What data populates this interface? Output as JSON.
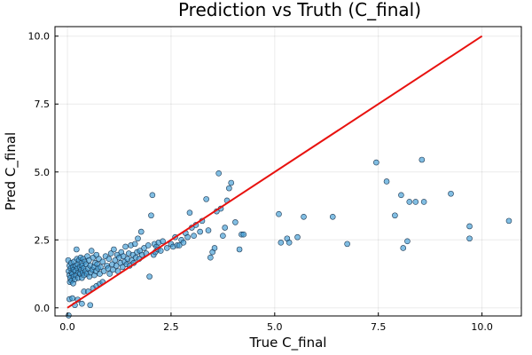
{
  "chart_data": {
    "type": "scatter",
    "title": "Prediction vs Truth (C_final)",
    "xlabel": "True C_final",
    "ylabel": "Pred C_final",
    "xlim": [
      -0.3,
      10.95
    ],
    "ylim": [
      -0.3,
      10.35
    ],
    "xticks": [
      0,
      2.5,
      5,
      7.5,
      10
    ],
    "xtick_labels": [
      "0.0",
      "2.5",
      "5.0",
      "7.5",
      "10.0"
    ],
    "yticks": [
      0,
      2.5,
      5,
      7.5,
      10
    ],
    "ytick_labels": [
      "0.0",
      "2.5",
      "5.0",
      "7.5",
      "10.0"
    ],
    "grid": true,
    "legend": false,
    "colors": {
      "points": "#3d9bd4",
      "reference_line": "#e8120f"
    },
    "reference_line": {
      "x": [
        0,
        10
      ],
      "y": [
        0,
        10
      ]
    },
    "points": [
      [
        0.03,
        -0.28
      ],
      [
        0.05,
        0.32
      ],
      [
        0.12,
        0.35
      ],
      [
        0.18,
        0.1
      ],
      [
        0.25,
        0.3
      ],
      [
        0.35,
        0.15
      ],
      [
        0.4,
        0.6
      ],
      [
        0.5,
        0.6
      ],
      [
        0.55,
        0.1
      ],
      [
        0.62,
        0.72
      ],
      [
        0.7,
        0.8
      ],
      [
        0.78,
        0.88
      ],
      [
        0.85,
        0.95
      ],
      [
        0.02,
        1.75
      ],
      [
        0.03,
        1.35
      ],
      [
        0.05,
        1.2
      ],
      [
        0.05,
        1.55
      ],
      [
        0.06,
        0.95
      ],
      [
        0.07,
        1.1
      ],
      [
        0.08,
        1.45
      ],
      [
        0.09,
        1.65
      ],
      [
        0.1,
        1.3
      ],
      [
        0.1,
        1.0
      ],
      [
        0.12,
        1.25
      ],
      [
        0.13,
        1.5
      ],
      [
        0.14,
        0.9
      ],
      [
        0.15,
        1.15
      ],
      [
        0.15,
        1.4
      ],
      [
        0.16,
        1.7
      ],
      [
        0.18,
        1.05
      ],
      [
        0.19,
        1.35
      ],
      [
        0.2,
        1.55
      ],
      [
        0.21,
        1.2
      ],
      [
        0.22,
        2.15
      ],
      [
        0.23,
        1.8
      ],
      [
        0.24,
        1.45
      ],
      [
        0.25,
        1.6
      ],
      [
        0.26,
        1.1
      ],
      [
        0.27,
        1.3
      ],
      [
        0.28,
        1.75
      ],
      [
        0.3,
        1.5
      ],
      [
        0.31,
        1.25
      ],
      [
        0.32,
        1.85
      ],
      [
        0.33,
        1.4
      ],
      [
        0.34,
        1.65
      ],
      [
        0.35,
        1.1
      ],
      [
        0.36,
        1.55
      ],
      [
        0.37,
        1.3
      ],
      [
        0.38,
        1.8
      ],
      [
        0.39,
        1.45
      ],
      [
        0.4,
        1.2
      ],
      [
        0.42,
        1.7
      ],
      [
        0.44,
        1.35
      ],
      [
        0.45,
        1.6
      ],
      [
        0.47,
        1.25
      ],
      [
        0.48,
        1.9
      ],
      [
        0.5,
        1.45
      ],
      [
        0.52,
        1.75
      ],
      [
        0.53,
        1.15
      ],
      [
        0.55,
        1.55
      ],
      [
        0.56,
        1.3
      ],
      [
        0.58,
        2.1
      ],
      [
        0.6,
        1.4
      ],
      [
        0.62,
        1.85
      ],
      [
        0.64,
        1.5
      ],
      [
        0.65,
        1.2
      ],
      [
        0.67,
        1.65
      ],
      [
        0.69,
        1.35
      ],
      [
        0.7,
        1.95
      ],
      [
        0.72,
        1.6
      ],
      [
        0.74,
        1.45
      ],
      [
        0.76,
        1.8
      ],
      [
        0.78,
        1.25
      ],
      [
        0.8,
        1.5
      ],
      [
        0.85,
        1.7
      ],
      [
        0.88,
        1.35
      ],
      [
        0.92,
        1.9
      ],
      [
        0.95,
        1.55
      ],
      [
        0.98,
        1.45
      ],
      [
        1.0,
        1.8
      ],
      [
        1.02,
        1.25
      ],
      [
        1.05,
        2.0
      ],
      [
        1.08,
        1.6
      ],
      [
        1.1,
        1.4
      ],
      [
        1.12,
        2.15
      ],
      [
        1.15,
        1.75
      ],
      [
        1.18,
        1.55
      ],
      [
        1.2,
        1.95
      ],
      [
        1.22,
        1.35
      ],
      [
        1.25,
        1.85
      ],
      [
        1.28,
        1.65
      ],
      [
        1.3,
        2.05
      ],
      [
        1.33,
        1.5
      ],
      [
        1.35,
        1.9
      ],
      [
        1.38,
        1.7
      ],
      [
        1.4,
        2.25
      ],
      [
        1.43,
        1.6
      ],
      [
        1.45,
        1.8
      ],
      [
        1.48,
        2.0
      ],
      [
        1.5,
        1.55
      ],
      [
        1.53,
        2.3
      ],
      [
        1.55,
        1.75
      ],
      [
        1.58,
        1.95
      ],
      [
        1.6,
        1.65
      ],
      [
        1.63,
        2.35
      ],
      [
        1.65,
        1.85
      ],
      [
        1.68,
        2.05
      ],
      [
        1.7,
        2.55
      ],
      [
        1.73,
        1.8
      ],
      [
        1.75,
        2.1
      ],
      [
        1.78,
        2.8
      ],
      [
        1.8,
        1.95
      ],
      [
        1.85,
        2.2
      ],
      [
        1.9,
        2.0
      ],
      [
        1.95,
        2.3
      ],
      [
        1.98,
        1.15
      ],
      [
        2.02,
        3.4
      ],
      [
        2.05,
        4.15
      ],
      [
        2.08,
        1.95
      ],
      [
        2.1,
        2.35
      ],
      [
        2.12,
        2.05
      ],
      [
        2.15,
        2.25
      ],
      [
        2.18,
        2.15
      ],
      [
        2.2,
        2.4
      ],
      [
        2.25,
        2.1
      ],
      [
        2.3,
        2.45
      ],
      [
        2.4,
        2.2
      ],
      [
        2.5,
        2.35
      ],
      [
        2.55,
        2.25
      ],
      [
        2.6,
        2.6
      ],
      [
        2.65,
        2.3
      ],
      [
        2.7,
        2.3
      ],
      [
        2.75,
        2.5
      ],
      [
        2.8,
        2.4
      ],
      [
        2.85,
        2.75
      ],
      [
        2.9,
        2.6
      ],
      [
        2.95,
        3.5
      ],
      [
        3.0,
        2.95
      ],
      [
        3.05,
        2.65
      ],
      [
        3.1,
        3.05
      ],
      [
        3.2,
        2.8
      ],
      [
        3.25,
        3.2
      ],
      [
        3.35,
        4.0
      ],
      [
        3.4,
        2.85
      ],
      [
        3.45,
        1.85
      ],
      [
        3.5,
        2.05
      ],
      [
        3.55,
        2.2
      ],
      [
        3.6,
        3.55
      ],
      [
        3.65,
        4.95
      ],
      [
        3.7,
        3.65
      ],
      [
        3.75,
        2.65
      ],
      [
        3.8,
        2.95
      ],
      [
        3.85,
        3.95
      ],
      [
        3.9,
        4.4
      ],
      [
        3.95,
        4.6
      ],
      [
        4.05,
        3.15
      ],
      [
        4.15,
        2.15
      ],
      [
        4.2,
        2.7
      ],
      [
        4.25,
        2.7
      ],
      [
        5.1,
        3.45
      ],
      [
        5.15,
        2.4
      ],
      [
        5.3,
        2.55
      ],
      [
        5.35,
        2.4
      ],
      [
        5.55,
        2.6
      ],
      [
        5.7,
        3.35
      ],
      [
        6.4,
        3.35
      ],
      [
        6.75,
        2.35
      ],
      [
        7.45,
        5.35
      ],
      [
        7.7,
        4.65
      ],
      [
        7.9,
        3.4
      ],
      [
        8.05,
        4.15
      ],
      [
        8.1,
        2.2
      ],
      [
        8.2,
        2.45
      ],
      [
        8.25,
        3.9
      ],
      [
        8.4,
        3.9
      ],
      [
        8.55,
        5.45
      ],
      [
        8.6,
        3.9
      ],
      [
        9.25,
        4.2
      ],
      [
        9.7,
        3.0
      ],
      [
        9.7,
        2.55
      ],
      [
        10.65,
        3.2
      ]
    ]
  }
}
